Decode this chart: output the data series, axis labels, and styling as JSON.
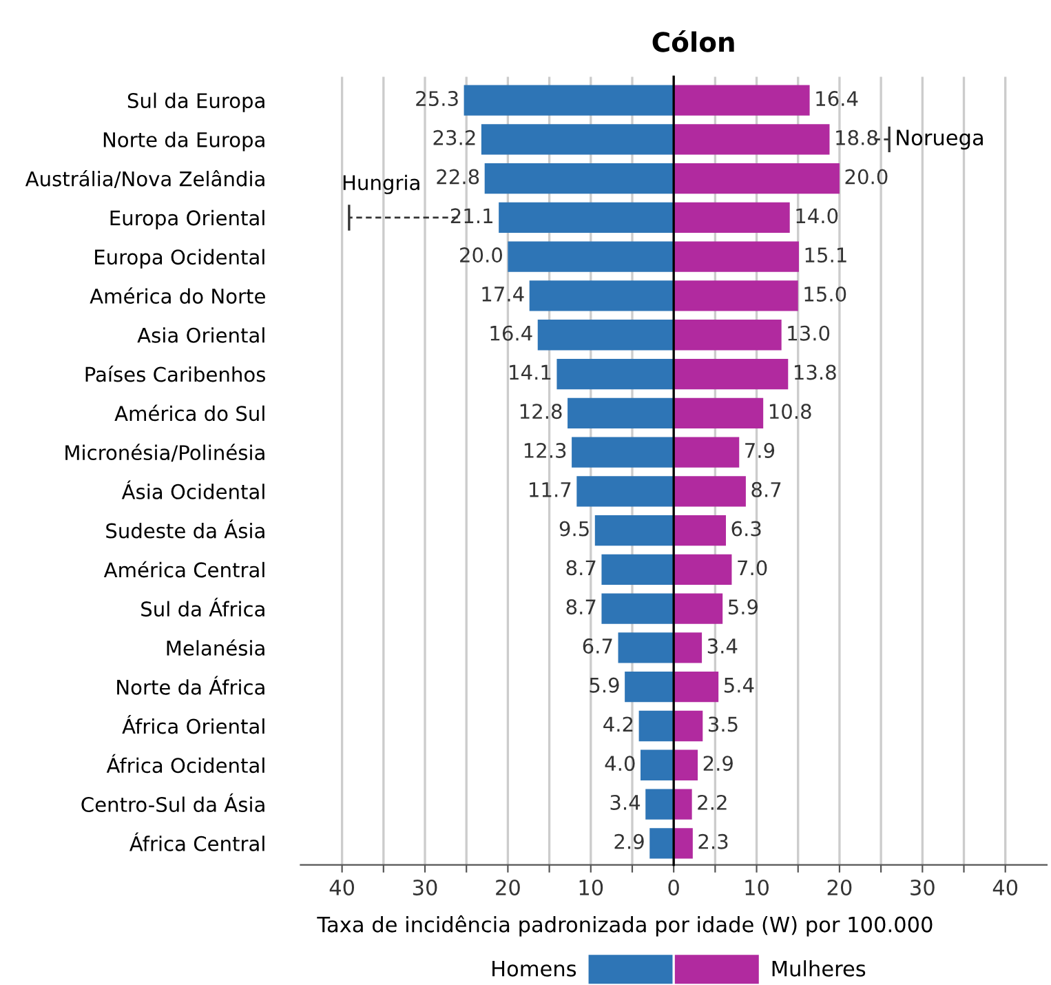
{
  "chart_data": [
    {
      "type": "bar",
      "orientation": "horizontal",
      "title": "Cólon",
      "xlabel": "Taxa de incidência padronizada por idade (W) por 100.000",
      "categories": [
        "Sul da Europa",
        "Norte da Europa",
        "Austrália/Nova Zelândia",
        "Europa Oriental",
        "Europa Ocidental",
        "América do Norte",
        "Asia Oriental",
        "Países Caribenhos",
        "América do Sul",
        "Micronésia/Polinésia",
        "Ásia Ocidental",
        "Sudeste da Ásia",
        "América Central",
        "Sul da África",
        "Melanésia",
        "Norte da África",
        "África Oriental",
        "África Ocidental",
        "Centro-Sul da Ásia",
        "África Central"
      ],
      "series": [
        {
          "name": "Homens",
          "color": "#2e75b6",
          "values": [
            25.3,
            23.2,
            22.8,
            21.1,
            20.0,
            17.4,
            16.4,
            14.1,
            12.8,
            12.3,
            11.7,
            9.5,
            8.7,
            8.7,
            6.7,
            5.9,
            4.2,
            4.0,
            3.4,
            2.9
          ],
          "value_labels": [
            "25.3",
            "23.2",
            "22.8",
            "21.1",
            "20.0",
            "17.4",
            "16.4",
            "14.1",
            "12.8",
            "12.3",
            "11.7",
            "9.5",
            "8.7",
            "8.7",
            "6.7",
            "5.9",
            "4.2",
            "4.0",
            "3.4",
            "2.9"
          ]
        }
      ],
      "xlim": [
        45,
        0
      ],
      "xticks": [
        40,
        {
          "value": 35,
          "label": null
        },
        30,
        {
          "value": 25,
          "label": null
        },
        20,
        {
          "value": 15,
          "label": null
        },
        10,
        {
          "value": 5,
          "label": null
        }
      ],
      "annotations": [
        "Hungria"
      ],
      "grid": "x",
      "legend": "bottom"
    },
    {
      "type": "bar",
      "orientation": "horizontal",
      "series": [
        {
          "name": "Mulheres",
          "color": "#b12a9f",
          "values": [
            16.4,
            18.8,
            20.0,
            14.0,
            15.1,
            15.0,
            13.0,
            13.8,
            10.8,
            7.9,
            8.7,
            6.3,
            7.0,
            5.9,
            3.4,
            5.4,
            3.5,
            2.9,
            2.2,
            2.3
          ],
          "value_labels": [
            "16.4",
            "18.8",
            "20.0",
            "14.0",
            "15.1",
            "15.0",
            "13.0",
            "13.8",
            "10.8",
            "7.9",
            "8.7",
            "6.3",
            "7.0",
            "5.9",
            "3.4",
            "5.4",
            "3.5",
            "2.9",
            "2.2",
            "2.3"
          ]
        }
      ],
      "xlim": [
        0,
        45
      ],
      "xticks": [
        0,
        {
          "value": 5,
          "label": null
        },
        10,
        {
          "value": 15,
          "label": null
        },
        20,
        {
          "value": 25,
          "label": null
        },
        30,
        {
          "value": 35,
          "label": null
        },
        40
      ],
      "annotations": [
        "Noruega"
      ],
      "tick_labels": "x",
      "grid": "x",
      "legend": "bottom"
    }
  ]
}
